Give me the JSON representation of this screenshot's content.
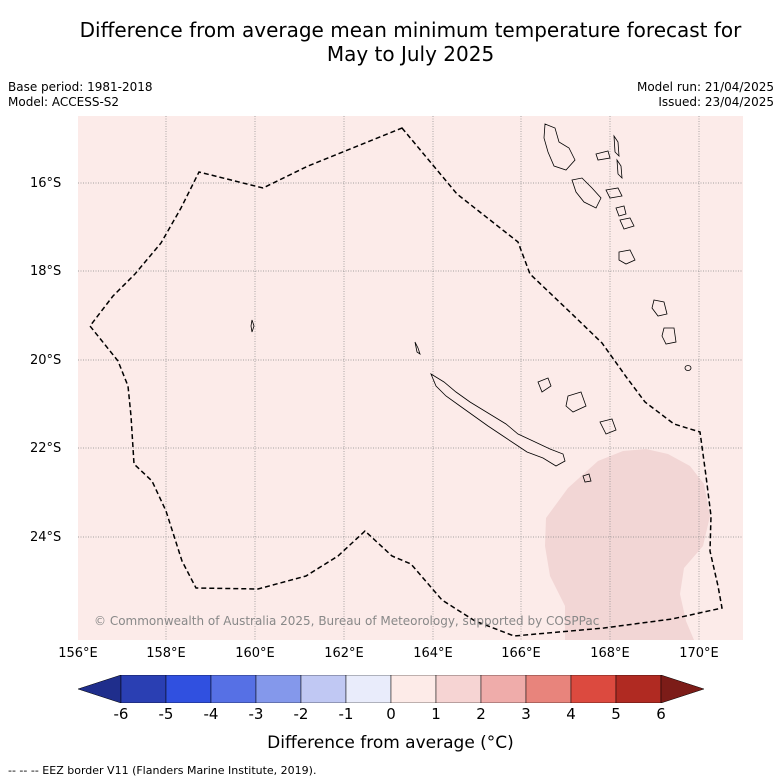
{
  "title": {
    "line1": "Difference from average mean minimum temperature forecast for",
    "line2": "May to July 2025"
  },
  "meta": {
    "base_period": "Base period: 1981-2018",
    "model": "Model: ACCESS-S2",
    "model_run": "Model run: 21/04/2025",
    "issued": "Issued: 23/04/2025"
  },
  "map": {
    "background_color": "#fcebe9",
    "anomaly_color": "#f2d6d5",
    "lat_labels": [
      "16°S",
      "18°S",
      "20°S",
      "22°S",
      "24°S"
    ],
    "lon_labels": [
      "156°E",
      "158°E",
      "160°E",
      "162°E",
      "164°E",
      "166°E",
      "168°E",
      "170°E"
    ],
    "copyright": "© Commonwealth of Australia 2025, Bureau of Meteorology, supported by COSPPac"
  },
  "colorbar": {
    "ticks": [
      "-6",
      "-5",
      "-4",
      "-3",
      "-2",
      "-1",
      "0",
      "1",
      "2",
      "3",
      "4",
      "5",
      "6"
    ],
    "colors": [
      "#1f2e8c",
      "#2a3fb3",
      "#3050e0",
      "#5670e5",
      "#8498eb",
      "#c0c8f3",
      "#e9ecfb",
      "#fdebe8",
      "#f6d4d3",
      "#efacaa",
      "#e8847c",
      "#dc4a3f",
      "#b02a22",
      "#7c1c18"
    ],
    "label": "Difference from average (°C)"
  },
  "footnote": "-- -- -- EEZ border V11 (Flanders Marine Institute, 2019)."
}
